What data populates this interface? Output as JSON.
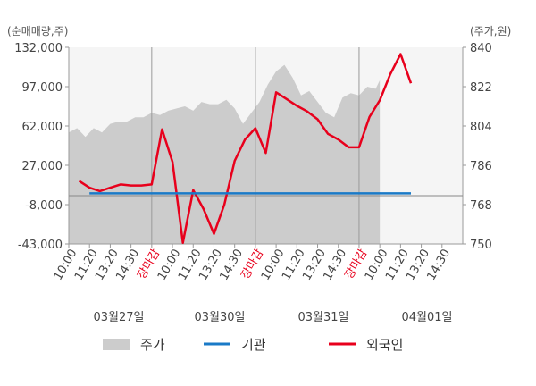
{
  "chart_data": {
    "type": "line",
    "left_axis_label": "(순매매량,주)",
    "right_axis_label": "(주가,원)",
    "left_ticks": [
      "132,000",
      "97,000",
      "62,000",
      "27,000",
      "-8,000",
      "-43,000"
    ],
    "right_ticks": [
      "840",
      "822",
      "804",
      "786",
      "768",
      "750"
    ],
    "ylim_left": [
      -43000,
      132000
    ],
    "ylim_right": [
      750,
      840
    ],
    "x_tick_labels": [
      "10:00",
      "11:20",
      "13:20",
      "14:30",
      "장마감",
      "10:00",
      "11:20",
      "13:20",
      "14:30",
      "장마감",
      "10:00",
      "11:20",
      "13:20",
      "14:30",
      "장마감",
      "10:00",
      "11:20",
      "13:20",
      "14:30"
    ],
    "marker_tick_label": "장마감",
    "marker_color": "#e8001c",
    "date_labels": [
      "03월27일",
      "03월30일",
      "03월31일",
      "04월01일"
    ],
    "legend": [
      {
        "name": "주가",
        "kind": "area",
        "color": "#cccccc"
      },
      {
        "name": "기관",
        "kind": "line",
        "color": "#1a7ac7"
      },
      {
        "name": "외국인",
        "kind": "line",
        "color": "#e8001c"
      }
    ],
    "series": [
      {
        "name": "외국인",
        "color": "#e8001c",
        "x_index": [
          0.5,
          1,
          1.5,
          2,
          2.5,
          3,
          3.5,
          4,
          4.5,
          5,
          5.5,
          6,
          6.5,
          7,
          7.5,
          8,
          8.5,
          9,
          9.5,
          10,
          10.5,
          11,
          11.5,
          12,
          12.5,
          13,
          13.5,
          14,
          14.5,
          15,
          15.5,
          16,
          16.5
        ],
        "values": [
          13000,
          7000,
          4000,
          7000,
          10000,
          9000,
          9000,
          10000,
          59000,
          30000,
          -42000,
          5000,
          -12000,
          -34000,
          -8000,
          31000,
          50000,
          60000,
          38000,
          92000,
          86000,
          80000,
          75000,
          68000,
          55000,
          50000,
          43000,
          43000,
          70000,
          85000,
          108000,
          126000,
          100000
        ]
      },
      {
        "name": "기관",
        "color": "#1a7ac7",
        "x_index": [
          1,
          16.5
        ],
        "values": [
          2000,
          2000
        ]
      },
      {
        "name": "주가",
        "color": "#cccccc",
        "x_index": [
          0,
          0.4,
          0.8,
          1.2,
          1.6,
          2,
          2.4,
          2.8,
          3.2,
          3.6,
          4,
          4.4,
          4.8,
          5.2,
          5.6,
          6,
          6.4,
          6.8,
          7.2,
          7.6,
          8,
          8.4,
          8.8,
          9.2,
          9.6,
          10,
          10.4,
          10.8,
          11.2,
          11.6,
          12,
          12.4,
          12.8,
          13.2,
          13.6,
          14,
          14.4,
          14.8,
          15
        ],
        "values": [
          801,
          803,
          799,
          803,
          801,
          805,
          806,
          806,
          808,
          808,
          810,
          809,
          811,
          812,
          813,
          811,
          815,
          814,
          814,
          816,
          812,
          805,
          810,
          815,
          823,
          829,
          832,
          826,
          818,
          820,
          815,
          810,
          808,
          817,
          819,
          818,
          822,
          821,
          825
        ]
      }
    ]
  }
}
